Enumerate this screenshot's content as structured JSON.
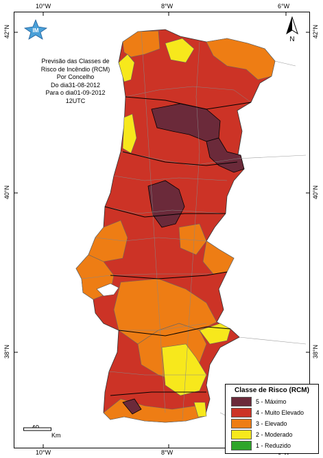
{
  "map": {
    "title_lines": [
      "Previsão das Classes de",
      "Risco de Incêndio (RCM)",
      "Por Concelho",
      "Do dia31-08-2012",
      "Para o dia01-09-2012",
      "12UTC"
    ],
    "logo_text": "IM",
    "north_label": "N",
    "longitude_labels": [
      "10°W",
      "8°W",
      "6°W"
    ],
    "latitude_labels": [
      "42°N",
      "40°N",
      "38°N"
    ],
    "scale": {
      "value": "40",
      "unit": "Km"
    }
  },
  "legend": {
    "title": "Classe de Risco (RCM)",
    "items": [
      {
        "label": "5 - Máximo",
        "color": "#6b2a3a"
      },
      {
        "label": "4 - Muito Elevado",
        "color": "#cc3326"
      },
      {
        "label": "3 - Elevado",
        "color": "#ee7d14"
      },
      {
        "label": "2 - Moderado",
        "color": "#f7e81c"
      },
      {
        "label": "1 - Reduzido",
        "color": "#2ea52a"
      }
    ]
  }
}
